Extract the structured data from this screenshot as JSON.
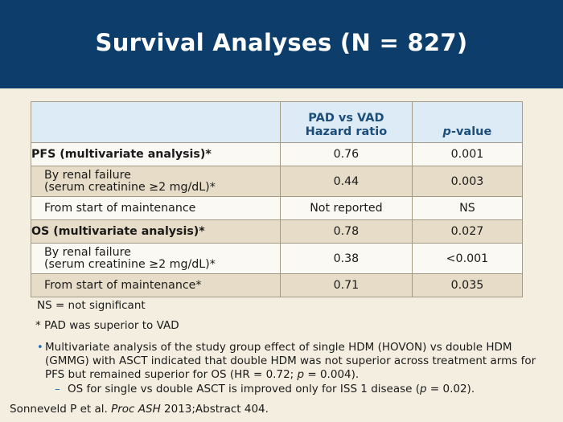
{
  "header": {
    "title": "Survival Analyses (N = 827)"
  },
  "table": {
    "col2_line1": "PAD vs VAD",
    "col2_line2": "Hazard ratio",
    "col3_italic": "p",
    "col3_rest": "-value",
    "rows": [
      {
        "label": "PFS (multivariate analysis)*",
        "label2": "",
        "hr": "0.76",
        "p": "0.001"
      },
      {
        "label": "By renal failure",
        "label2": "(serum creatinine ≥2 mg/dL)*",
        "hr": "0.44",
        "p": "0.003"
      },
      {
        "label": "From start of maintenance",
        "label2": "",
        "hr": "Not reported",
        "p": "NS"
      },
      {
        "label": "OS (multivariate analysis)*",
        "label2": "",
        "hr": "0.78",
        "p": "0.027"
      },
      {
        "label": "By renal failure",
        "label2": "(serum creatinine ≥2 mg/dL)*",
        "hr": "0.38",
        "p": "<0.001"
      },
      {
        "label": "From start of maintenance*",
        "label2": "",
        "hr": "0.71",
        "p": "0.035"
      }
    ]
  },
  "notes": {
    "ns": "NS = not significant",
    "star": "* PAD was superior to VAD"
  },
  "bullet": {
    "dot": "•",
    "part1": "Multivariate analysis of the study group effect of single HDM (HOVON) vs double HDM (GMMG) with ASCT indicated that double HDM was not superior across treatment arms for PFS but remained superior for OS (HR = 0.72; ",
    "p_italic": "p",
    "part2": " = 0.004).",
    "sub_dash": "–",
    "sub_part1": "OS for single vs double ASCT is improved only for ISS 1 disease (",
    "sub_p_italic": "p",
    "sub_part2": " = 0.02)."
  },
  "reference": {
    "part1": "Sonneveld P et al. ",
    "italic": "Proc ASH",
    "part2": " 2013;Abstract 404."
  }
}
